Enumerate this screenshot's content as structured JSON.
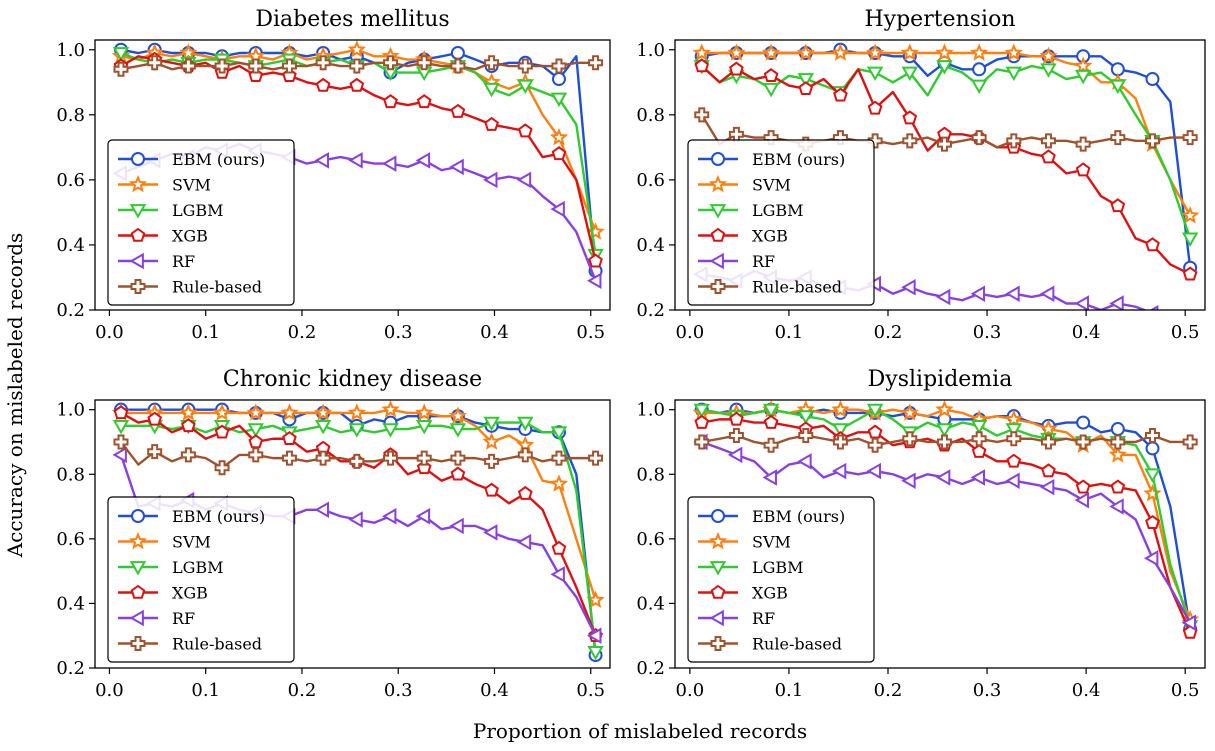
{
  "figure": {
    "ylabel": "Accuracy on mislabeled records",
    "xlabel": "Proportion of mislabeled records"
  },
  "series_styles": [
    {
      "name": "EBM (ours)",
      "color": "#1f4fd6",
      "marker": "circle"
    },
    {
      "name": "SVM",
      "color": "#ff7f0e",
      "marker": "star"
    },
    {
      "name": "LGBM",
      "color": "#2ecc2e",
      "marker": "triangle-down"
    },
    {
      "name": "XGB",
      "color": "#e01010",
      "marker": "pentagon"
    },
    {
      "name": "RF",
      "color": "#8a3fe0",
      "marker": "triangle-left"
    },
    {
      "name": "Rule-based",
      "color": "#a0522d",
      "marker": "plus"
    }
  ],
  "chart_data": [
    {
      "type": "line",
      "title": "Diabetes mellitus",
      "xlabel": "",
      "ylabel": "",
      "xlim": [
        -0.015,
        0.52
      ],
      "ylim": [
        0.2,
        1.03
      ],
      "xticks": [
        "0.0",
        "0.1",
        "0.2",
        "0.3",
        "0.4",
        "0.5"
      ],
      "yticks": [
        "0.2",
        "0.4",
        "0.6",
        "0.8",
        "1.0"
      ],
      "legend_position": "lower-left",
      "grid": false,
      "x": [
        0.012,
        0.03,
        0.047,
        0.065,
        0.082,
        0.1,
        0.117,
        0.135,
        0.152,
        0.17,
        0.187,
        0.205,
        0.222,
        0.24,
        0.257,
        0.275,
        0.292,
        0.31,
        0.327,
        0.345,
        0.362,
        0.38,
        0.397,
        0.415,
        0.432,
        0.45,
        0.467,
        0.485,
        0.505
      ],
      "series": [
        {
          "name": "EBM (ours)",
          "values": [
            1.0,
            0.99,
            1.0,
            0.99,
            0.99,
            0.99,
            0.98,
            0.99,
            0.99,
            0.99,
            0.99,
            0.98,
            0.99,
            0.97,
            0.98,
            0.96,
            0.93,
            0.96,
            0.97,
            0.98,
            0.99,
            0.97,
            0.95,
            0.96,
            0.96,
            0.95,
            0.91,
            0.98,
            0.32
          ]
        },
        {
          "name": "SVM",
          "values": [
            0.98,
            0.97,
            0.99,
            0.98,
            0.99,
            0.98,
            0.97,
            0.98,
            0.98,
            0.97,
            0.99,
            0.97,
            0.98,
            0.99,
            1.0,
            0.98,
            0.98,
            0.97,
            0.97,
            0.96,
            0.95,
            0.93,
            0.9,
            0.88,
            0.9,
            0.8,
            0.73,
            0.6,
            0.44
          ]
        },
        {
          "name": "LGBM",
          "values": [
            0.99,
            0.97,
            0.96,
            0.97,
            0.96,
            0.97,
            0.97,
            0.96,
            0.95,
            0.96,
            0.97,
            0.95,
            0.96,
            0.97,
            0.95,
            0.96,
            0.93,
            0.93,
            0.93,
            0.94,
            0.95,
            0.93,
            0.88,
            0.86,
            0.89,
            0.87,
            0.85,
            0.77,
            0.37
          ]
        },
        {
          "name": "XGB",
          "values": [
            0.95,
            0.98,
            0.97,
            0.96,
            0.95,
            0.96,
            0.93,
            0.95,
            0.92,
            0.93,
            0.92,
            0.9,
            0.89,
            0.88,
            0.89,
            0.86,
            0.84,
            0.83,
            0.84,
            0.82,
            0.81,
            0.79,
            0.77,
            0.76,
            0.75,
            0.67,
            0.68,
            0.6,
            0.35
          ]
        },
        {
          "name": "RF",
          "values": [
            0.62,
            0.64,
            0.66,
            0.68,
            0.67,
            0.7,
            0.69,
            0.71,
            0.69,
            0.68,
            0.67,
            0.65,
            0.66,
            0.67,
            0.66,
            0.65,
            0.65,
            0.64,
            0.66,
            0.63,
            0.64,
            0.62,
            0.6,
            0.61,
            0.6,
            0.55,
            0.51,
            0.44,
            0.29
          ]
        },
        {
          "name": "Rule-based",
          "values": [
            0.94,
            0.95,
            0.96,
            0.94,
            0.95,
            0.95,
            0.95,
            0.96,
            0.95,
            0.94,
            0.95,
            0.95,
            0.96,
            0.95,
            0.95,
            0.96,
            0.96,
            0.95,
            0.96,
            0.95,
            0.95,
            0.94,
            0.96,
            0.95,
            0.95,
            0.95,
            0.95,
            0.96,
            0.96
          ]
        }
      ]
    },
    {
      "type": "line",
      "title": "Hypertension",
      "xlabel": "",
      "ylabel": "",
      "xlim": [
        -0.015,
        0.52
      ],
      "ylim": [
        0.2,
        1.03
      ],
      "xticks": [
        "0.0",
        "0.1",
        "0.2",
        "0.3",
        "0.4",
        "0.5"
      ],
      "yticks": [
        "0.2",
        "0.4",
        "0.6",
        "0.8",
        "1.0"
      ],
      "legend_position": "lower-left",
      "grid": false,
      "x": [
        0.012,
        0.03,
        0.047,
        0.065,
        0.082,
        0.1,
        0.117,
        0.135,
        0.152,
        0.17,
        0.187,
        0.205,
        0.222,
        0.24,
        0.257,
        0.275,
        0.292,
        0.31,
        0.327,
        0.345,
        0.362,
        0.38,
        0.397,
        0.415,
        0.432,
        0.45,
        0.467,
        0.485,
        0.505
      ],
      "series": [
        {
          "name": "EBM (ours)",
          "values": [
            0.98,
            0.99,
            0.99,
            0.99,
            0.99,
            0.99,
            0.99,
            0.99,
            1.0,
            0.99,
            0.99,
            0.98,
            0.98,
            0.92,
            0.96,
            0.94,
            0.94,
            0.97,
            0.98,
            0.98,
            0.98,
            0.98,
            0.98,
            0.98,
            0.94,
            0.93,
            0.91,
            0.84,
            0.33
          ]
        },
        {
          "name": "SVM",
          "values": [
            0.99,
            0.99,
            0.99,
            0.99,
            0.99,
            0.99,
            0.99,
            0.99,
            0.99,
            0.99,
            0.99,
            0.99,
            0.99,
            0.99,
            0.99,
            0.99,
            0.99,
            0.99,
            0.99,
            0.98,
            0.98,
            0.96,
            0.95,
            0.9,
            0.9,
            0.85,
            0.71,
            0.6,
            0.49
          ]
        },
        {
          "name": "LGBM",
          "values": [
            0.95,
            0.9,
            0.92,
            0.91,
            0.88,
            0.92,
            0.91,
            0.89,
            0.87,
            0.94,
            0.93,
            0.9,
            0.93,
            0.86,
            0.95,
            0.93,
            0.89,
            0.94,
            0.93,
            0.95,
            0.94,
            0.91,
            0.92,
            0.93,
            0.89,
            0.8,
            0.72,
            0.6,
            0.42
          ]
        },
        {
          "name": "XGB",
          "values": [
            0.95,
            0.9,
            0.94,
            0.91,
            0.92,
            0.89,
            0.88,
            0.91,
            0.86,
            0.94,
            0.82,
            0.87,
            0.79,
            0.69,
            0.74,
            0.74,
            0.73,
            0.7,
            0.7,
            0.68,
            0.67,
            0.62,
            0.63,
            0.55,
            0.52,
            0.42,
            0.4,
            0.34,
            0.31
          ]
        },
        {
          "name": "RF",
          "values": [
            0.31,
            0.3,
            0.29,
            0.32,
            0.3,
            0.29,
            0.3,
            0.27,
            0.27,
            0.26,
            0.28,
            0.25,
            0.27,
            0.25,
            0.24,
            0.23,
            0.25,
            0.24,
            0.25,
            0.24,
            0.25,
            0.22,
            0.22,
            0.2,
            0.22,
            0.21,
            0.19,
            0.17,
            0.15
          ]
        },
        {
          "name": "Rule-based",
          "values": [
            0.8,
            0.71,
            0.74,
            0.73,
            0.73,
            0.72,
            0.71,
            0.72,
            0.73,
            0.72,
            0.72,
            0.71,
            0.72,
            0.73,
            0.71,
            0.72,
            0.73,
            0.7,
            0.72,
            0.73,
            0.72,
            0.72,
            0.71,
            0.72,
            0.73,
            0.72,
            0.72,
            0.73,
            0.73
          ]
        }
      ]
    },
    {
      "type": "line",
      "title": "Chronic kidney disease",
      "xlabel": "",
      "ylabel": "",
      "xlim": [
        -0.015,
        0.52
      ],
      "ylim": [
        0.2,
        1.03
      ],
      "xticks": [
        "0.0",
        "0.1",
        "0.2",
        "0.3",
        "0.4",
        "0.5"
      ],
      "yticks": [
        "0.2",
        "0.4",
        "0.6",
        "0.8",
        "1.0"
      ],
      "legend_position": "lower-left",
      "grid": false,
      "x": [
        0.012,
        0.03,
        0.047,
        0.065,
        0.082,
        0.1,
        0.117,
        0.135,
        0.152,
        0.17,
        0.187,
        0.205,
        0.222,
        0.24,
        0.257,
        0.275,
        0.292,
        0.31,
        0.327,
        0.345,
        0.362,
        0.38,
        0.397,
        0.415,
        0.432,
        0.45,
        0.467,
        0.485,
        0.505
      ],
      "series": [
        {
          "name": "EBM (ours)",
          "values": [
            1.0,
            1.0,
            1.0,
            1.0,
            1.0,
            1.0,
            1.0,
            0.99,
            0.99,
            0.99,
            0.97,
            0.99,
            0.99,
            0.99,
            0.95,
            0.97,
            0.96,
            0.98,
            0.98,
            0.98,
            0.98,
            0.96,
            0.95,
            0.94,
            0.94,
            0.93,
            0.93,
            0.8,
            0.24
          ]
        },
        {
          "name": "SVM",
          "values": [
            0.99,
            0.99,
            0.99,
            0.99,
            0.99,
            0.99,
            0.99,
            0.99,
            0.99,
            0.99,
            0.99,
            0.99,
            0.99,
            0.99,
            0.99,
            0.99,
            1.0,
            0.99,
            0.99,
            0.98,
            0.98,
            0.95,
            0.9,
            0.92,
            0.89,
            0.78,
            0.77,
            0.6,
            0.41
          ]
        },
        {
          "name": "LGBM",
          "values": [
            0.95,
            0.95,
            0.95,
            0.94,
            0.95,
            0.93,
            0.95,
            0.93,
            0.94,
            0.95,
            0.93,
            0.94,
            0.95,
            0.93,
            0.94,
            0.93,
            0.94,
            0.94,
            0.95,
            0.95,
            0.94,
            0.94,
            0.96,
            0.96,
            0.96,
            0.93,
            0.93,
            0.75,
            0.25
          ]
        },
        {
          "name": "XGB",
          "values": [
            0.99,
            0.96,
            0.97,
            0.93,
            0.95,
            0.91,
            0.93,
            0.95,
            0.9,
            0.91,
            0.91,
            0.87,
            0.88,
            0.84,
            0.84,
            0.82,
            0.86,
            0.8,
            0.82,
            0.78,
            0.8,
            0.77,
            0.75,
            0.71,
            0.74,
            0.69,
            0.57,
            0.45,
            0.3
          ]
        },
        {
          "name": "RF",
          "values": [
            0.86,
            0.7,
            0.71,
            0.7,
            0.72,
            0.69,
            0.71,
            0.69,
            0.68,
            0.67,
            0.67,
            0.69,
            0.69,
            0.67,
            0.66,
            0.65,
            0.67,
            0.64,
            0.67,
            0.63,
            0.64,
            0.64,
            0.62,
            0.6,
            0.59,
            0.58,
            0.49,
            0.42,
            0.3
          ]
        },
        {
          "name": "Rule-based",
          "values": [
            0.9,
            0.83,
            0.87,
            0.84,
            0.86,
            0.85,
            0.82,
            0.86,
            0.86,
            0.85,
            0.85,
            0.84,
            0.85,
            0.85,
            0.84,
            0.84,
            0.85,
            0.85,
            0.85,
            0.84,
            0.85,
            0.85,
            0.84,
            0.85,
            0.86,
            0.84,
            0.85,
            0.85,
            0.85
          ]
        }
      ]
    },
    {
      "type": "line",
      "title": "Dyslipidemia",
      "xlabel": "",
      "ylabel": "",
      "xlim": [
        -0.015,
        0.52
      ],
      "ylim": [
        0.2,
        1.03
      ],
      "xticks": [
        "0.0",
        "0.1",
        "0.2",
        "0.3",
        "0.4",
        "0.5"
      ],
      "yticks": [
        "0.2",
        "0.4",
        "0.6",
        "0.8",
        "1.0"
      ],
      "legend_position": "lower-left",
      "grid": false,
      "x": [
        0.012,
        0.03,
        0.047,
        0.065,
        0.082,
        0.1,
        0.117,
        0.135,
        0.152,
        0.17,
        0.187,
        0.205,
        0.222,
        0.24,
        0.257,
        0.275,
        0.292,
        0.31,
        0.327,
        0.345,
        0.362,
        0.38,
        0.397,
        0.415,
        0.432,
        0.45,
        0.467,
        0.485,
        0.505
      ],
      "series": [
        {
          "name": "EBM (ours)",
          "values": [
            1.0,
            0.99,
            1.0,
            0.99,
            1.0,
            0.99,
            0.99,
            1.0,
            0.99,
            0.99,
            0.99,
            0.98,
            0.99,
            0.98,
            0.97,
            0.97,
            0.97,
            0.98,
            0.98,
            0.96,
            0.95,
            0.96,
            0.96,
            0.93,
            0.94,
            0.93,
            0.88,
            0.7,
            0.32
          ]
        },
        {
          "name": "SVM",
          "values": [
            0.99,
            0.99,
            0.99,
            0.99,
            1.0,
            0.99,
            1.0,
            0.99,
            1.0,
            1.0,
            0.99,
            1.0,
            0.99,
            0.98,
            1.0,
            0.99,
            0.97,
            0.98,
            0.97,
            0.96,
            0.94,
            0.93,
            0.89,
            0.92,
            0.86,
            0.86,
            0.74,
            0.5,
            0.35
          ]
        },
        {
          "name": "LGBM",
          "values": [
            1.0,
            0.99,
            0.98,
            0.99,
            1.0,
            0.99,
            0.98,
            0.97,
            0.94,
            0.97,
            1.0,
            0.97,
            0.93,
            0.96,
            0.94,
            0.96,
            0.95,
            0.92,
            0.94,
            0.92,
            0.91,
            0.91,
            0.9,
            0.91,
            0.9,
            0.89,
            0.8,
            0.52,
            0.33
          ]
        },
        {
          "name": "XGB",
          "values": [
            0.96,
            0.97,
            0.97,
            0.96,
            0.96,
            0.95,
            0.94,
            0.95,
            0.91,
            0.93,
            0.93,
            0.89,
            0.9,
            0.91,
            0.89,
            0.91,
            0.87,
            0.84,
            0.84,
            0.83,
            0.81,
            0.8,
            0.76,
            0.77,
            0.76,
            0.75,
            0.65,
            0.45,
            0.31
          ]
        },
        {
          "name": "RF",
          "values": [
            0.9,
            0.88,
            0.86,
            0.84,
            0.79,
            0.83,
            0.84,
            0.79,
            0.81,
            0.8,
            0.81,
            0.8,
            0.78,
            0.8,
            0.79,
            0.77,
            0.79,
            0.77,
            0.78,
            0.77,
            0.76,
            0.75,
            0.72,
            0.74,
            0.7,
            0.66,
            0.54,
            0.45,
            0.34
          ]
        },
        {
          "name": "Rule-based",
          "values": [
            0.9,
            0.91,
            0.92,
            0.9,
            0.89,
            0.91,
            0.92,
            0.91,
            0.9,
            0.91,
            0.89,
            0.9,
            0.91,
            0.9,
            0.9,
            0.9,
            0.91,
            0.9,
            0.91,
            0.91,
            0.9,
            0.91,
            0.9,
            0.91,
            0.9,
            0.9,
            0.92,
            0.9,
            0.9
          ]
        }
      ]
    }
  ]
}
